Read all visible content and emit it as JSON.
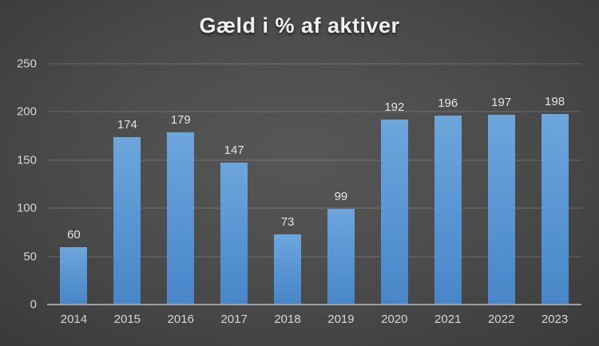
{
  "chart": {
    "title": "Gæld i % af aktiver"
  },
  "chart_data": {
    "type": "bar",
    "title": "Gæld i % af aktiver",
    "categories": [
      "2014",
      "2015",
      "2016",
      "2017",
      "2018",
      "2019",
      "2020",
      "2021",
      "2022",
      "2023"
    ],
    "values": [
      60,
      174,
      179,
      147,
      73,
      99,
      192,
      196,
      197,
      198
    ],
    "xlabel": "",
    "ylabel": "",
    "ylim": [
      0,
      250
    ],
    "yticks": [
      0,
      50,
      100,
      150,
      200,
      250
    ],
    "grid": "horizontal",
    "legend_position": "none",
    "data_labels": "above-bars",
    "colors": {
      "bar_top": "#6da6dc",
      "bar_bottom": "#4886c9",
      "title_text": "#f1f1f1",
      "tick_text": "#d6d6d6",
      "value_label_text": "#e2e2e2",
      "gridline": "rgba(255,255,255,0.19)",
      "axis_line": "#a0a0a0",
      "background_center": "#575757",
      "background_edge": "#232323"
    }
  }
}
